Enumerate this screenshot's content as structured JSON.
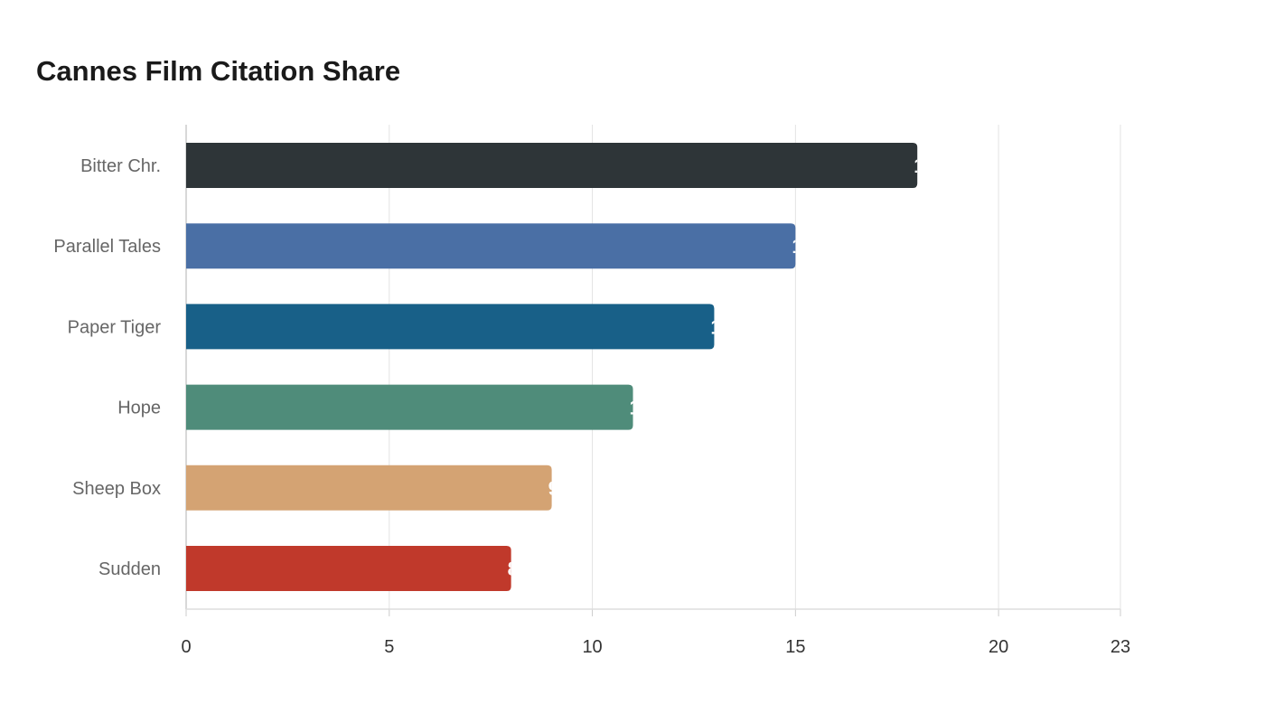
{
  "chart_data": {
    "type": "bar",
    "orientation": "horizontal",
    "title": "Cannes Film Citation Share",
    "xlabel": "",
    "ylabel": "",
    "categories": [
      "Bitter Chr.",
      "Parallel Tales",
      "Paper Tiger",
      "Hope",
      "Sheep Box",
      "Sudden"
    ],
    "values": [
      18,
      15,
      13,
      11,
      9,
      8
    ],
    "colors": [
      "#2e3538",
      "#4a6fa5",
      "#186088",
      "#4f8c7a",
      "#d4a373",
      "#c0392b"
    ],
    "xlim": [
      0,
      23
    ],
    "xticks": [
      0,
      5,
      10,
      15,
      20,
      23
    ],
    "grid": true,
    "legend": "none"
  }
}
